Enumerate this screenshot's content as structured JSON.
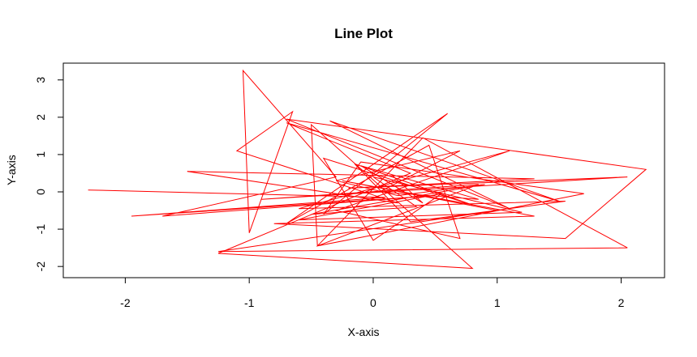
{
  "chart_data": {
    "type": "line",
    "title": "Line Plot",
    "xlabel": "X-axis",
    "ylabel": "Y-axis",
    "xlim": [
      -2.5,
      2.35
    ],
    "ylim": [
      -2.3,
      3.45
    ],
    "x_ticks": [
      -2,
      -1,
      0,
      1,
      2
    ],
    "y_ticks": [
      -2,
      -1,
      0,
      1,
      2,
      3
    ],
    "grid": false,
    "legend": "none",
    "series": [
      {
        "color": "#ff0000",
        "x": [
          -2.3,
          0.1,
          -1.95,
          0.5,
          -1.7,
          -0.3,
          -1.05,
          -1.0,
          -0.65,
          -1.1,
          0.2,
          -1.5,
          1.3,
          -0.2,
          2.05,
          -0.9,
          0.85,
          -0.45,
          -0.5,
          0.8,
          -1.25,
          0.3,
          -0.7,
          1.5,
          -0.35,
          1.1,
          -0.7,
          2.2,
          1.55,
          -0.8,
          1.3,
          -0.25,
          1.0,
          -1.25,
          2.05,
          0.4,
          -0.45,
          1.7,
          -0.1,
          -0.4,
          0.6,
          -0.7,
          0.45,
          0.7,
          -0.3,
          1.1,
          -0.6,
          1.55,
          0.3,
          -0.15,
          0.8,
          -0.4,
          0.0,
          0.55,
          -0.6,
          1.2,
          0.0,
          0.35,
          -0.5,
          0.9,
          0.2,
          -0.3,
          0.7,
          0.05,
          0.85,
          -0.1,
          0.4,
          0.15
        ],
        "y": [
          0.05,
          -0.15,
          -0.65,
          -0.1,
          -0.65,
          0.4,
          3.25,
          -1.1,
          2.15,
          1.1,
          -0.3,
          0.55,
          0.35,
          0.1,
          0.4,
          -0.2,
          0.2,
          -1.45,
          1.8,
          -2.05,
          -1.65,
          0.5,
          1.85,
          -0.25,
          1.9,
          -0.45,
          1.95,
          0.6,
          -1.25,
          -0.85,
          -0.65,
          0.3,
          -0.5,
          -1.6,
          -1.5,
          1.45,
          -1.45,
          -0.05,
          0.8,
          -0.6,
          2.1,
          -0.85,
          1.25,
          -1.25,
          -0.5,
          1.1,
          -0.45,
          -0.25,
          -0.8,
          0.75,
          -0.35,
          0.9,
          -1.3,
          -0.05,
          -0.75,
          -0.55,
          0.4,
          -0.4,
          -0.6,
          0.2,
          -0.1,
          0.3,
          1.1,
          0.0,
          -0.2,
          0.7,
          -0.3,
          0.45
        ]
      }
    ]
  }
}
